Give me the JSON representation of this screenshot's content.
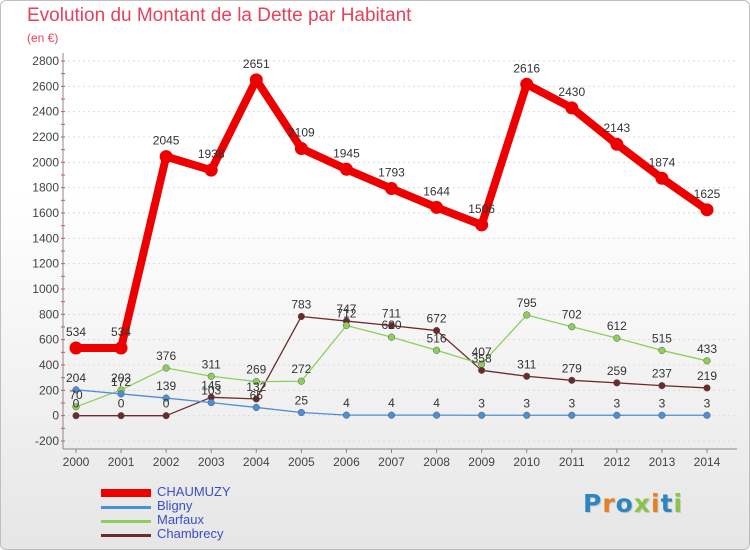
{
  "brand": {
    "letters": [
      {
        "ch": "P",
        "color": "#2e86c1"
      },
      {
        "ch": "r",
        "color": "#e67e22"
      },
      {
        "ch": "o",
        "color": "#2e86c1"
      },
      {
        "ch": "x",
        "color": "#8bc34a"
      },
      {
        "ch": "i",
        "color": "#e67e22"
      },
      {
        "ch": "t",
        "color": "#2e86c1"
      },
      {
        "ch": "i",
        "color": "#8bc34a"
      }
    ]
  },
  "chart_data": {
    "type": "line",
    "title": "Evolution du Montant de la Dette par Habitant",
    "subtitle": "(en €)",
    "xlabel": "",
    "ylabel": "",
    "x": [
      "2000",
      "2001",
      "2002",
      "2003",
      "2004",
      "2005",
      "2006",
      "2007",
      "2008",
      "2009",
      "2010",
      "2011",
      "2012",
      "2013",
      "2014"
    ],
    "ylim": [
      -200,
      2800
    ],
    "yticks": [
      -200,
      0,
      200,
      400,
      600,
      800,
      1000,
      1200,
      1400,
      1600,
      1800,
      2000,
      2200,
      2400,
      2600,
      2800
    ],
    "grid": "horizontal dashed",
    "legend_position": "bottom-left",
    "series": [
      {
        "name": "CHAUMUZY",
        "color": "#ee0000",
        "values": [
          534,
          534,
          2045,
          1938,
          2651,
          2109,
          1945,
          1793,
          1644,
          1506,
          2616,
          2430,
          2143,
          1874,
          1625
        ],
        "labels": [
          "534",
          "534",
          "2045",
          "1938",
          "2651",
          "2109",
          "1945",
          "1793",
          "1644",
          "1506",
          "2616",
          "2430",
          "2143",
          "1874",
          "1625"
        ]
      },
      {
        "name": "Bligny",
        "color": "#4a90d9",
        "values": [
          204,
          172,
          139,
          103,
          65,
          25,
          4,
          4,
          4,
          3,
          3,
          3,
          3,
          3,
          3
        ],
        "labels": [
          "204",
          "172",
          "139",
          "103",
          "65",
          "25",
          "4",
          "4",
          "4",
          "3",
          "3",
          "3",
          "3",
          "3",
          "3"
        ]
      },
      {
        "name": "Marfaux",
        "color": "#8cd05a",
        "values": [
          70,
          203,
          376,
          311,
          269,
          272,
          712,
          620,
          516,
          407,
          795,
          702,
          612,
          515,
          433
        ],
        "labels": [
          "70",
          "203",
          "376",
          "311",
          "269",
          "272",
          "712",
          "620",
          "516",
          "407",
          "795",
          "702",
          "612",
          "515",
          "433"
        ]
      },
      {
        "name": "Chambrecy",
        "color": "#6e2a2a",
        "values": [
          0,
          0,
          0,
          145,
          132,
          783,
          747,
          711,
          672,
          358,
          311,
          279,
          259,
          237,
          219
        ],
        "labels": [
          "0",
          "0",
          "0",
          "145",
          "132",
          "783",
          "747",
          "711",
          "672",
          "358",
          "311",
          "279",
          "259",
          "237",
          "219"
        ]
      }
    ]
  }
}
